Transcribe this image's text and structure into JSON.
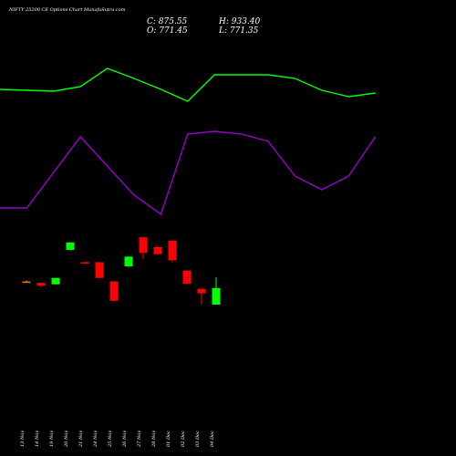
{
  "header": {
    "title": "NIFTY 25200  CE Options  Chart MunafaSutra.com",
    "close_label": "C: 875.55",
    "open_label": "O: 771.45",
    "high_label": "H: 933.40",
    "low_label": "L: 771.35"
  },
  "colors": {
    "background": "#000000",
    "up": "#00ff00",
    "down": "#ff0000",
    "neutral": "#ff6a00",
    "green_line": "#00ff00",
    "purple_line": "#9900cc",
    "text": "#ffffff"
  },
  "chart_data": {
    "type": "candlestick",
    "x": [
      "13 Nov",
      "14 Nov",
      "19 Nov",
      "20 Nov",
      "21 Nov",
      "24 Nov",
      "25 Nov",
      "26 Nov",
      "27 Nov",
      "28 Nov",
      "01 Dec",
      "02 Dec",
      "03 Dec",
      "04 Dec"
    ],
    "candles": [
      {
        "o": 614,
        "h": 617,
        "l": 613,
        "c": 614
      },
      {
        "o": 607,
        "h": 609,
        "l": 586,
        "c": 594
      },
      {
        "o": 600,
        "h": 631,
        "l": 600,
        "c": 631
      },
      {
        "o": 768,
        "h": 805,
        "l": 765,
        "c": 804
      },
      {
        "o": 708,
        "h": 710,
        "l": 706,
        "c": 707
      },
      {
        "o": 708,
        "h": 708,
        "l": 630,
        "c": 631
      },
      {
        "o": 614,
        "h": 616,
        "l": 518,
        "c": 520
      },
      {
        "o": 687,
        "h": 736,
        "l": 685,
        "c": 735
      },
      {
        "o": 829,
        "h": 830,
        "l": 723,
        "c": 753
      },
      {
        "o": 781,
        "h": 788,
        "l": 745,
        "c": 747
      },
      {
        "o": 813,
        "h": 813,
        "l": 708,
        "c": 717
      },
      {
        "o": 667,
        "h": 668,
        "l": 602,
        "c": 603
      },
      {
        "o": 578,
        "h": 580,
        "l": 502,
        "c": 556
      },
      {
        "o": 501,
        "h": 633,
        "l": 501,
        "c": 582
      }
    ],
    "overlay_lines": [
      {
        "color": "#00ff00",
        "points": [
          [
            0,
            98
          ],
          [
            1,
            99
          ],
          [
            2,
            100
          ],
          [
            3,
            95
          ],
          [
            4,
            75
          ],
          [
            5,
            86
          ],
          [
            6,
            98
          ],
          [
            7,
            111
          ],
          [
            8,
            82
          ],
          [
            9,
            82
          ],
          [
            10,
            82
          ],
          [
            11,
            86
          ],
          [
            12,
            99
          ],
          [
            13,
            106
          ],
          [
            14,
            102
          ]
        ]
      },
      {
        "color": "#9900cc",
        "points": [
          [
            0,
            228
          ],
          [
            1,
            228
          ],
          [
            3,
            150
          ],
          [
            5,
            214
          ],
          [
            6,
            235
          ],
          [
            7,
            147
          ],
          [
            8,
            144
          ],
          [
            9,
            147
          ],
          [
            10,
            155
          ],
          [
            11,
            193
          ],
          [
            12,
            208
          ],
          [
            13,
            193
          ],
          [
            14,
            150
          ]
        ]
      }
    ]
  }
}
